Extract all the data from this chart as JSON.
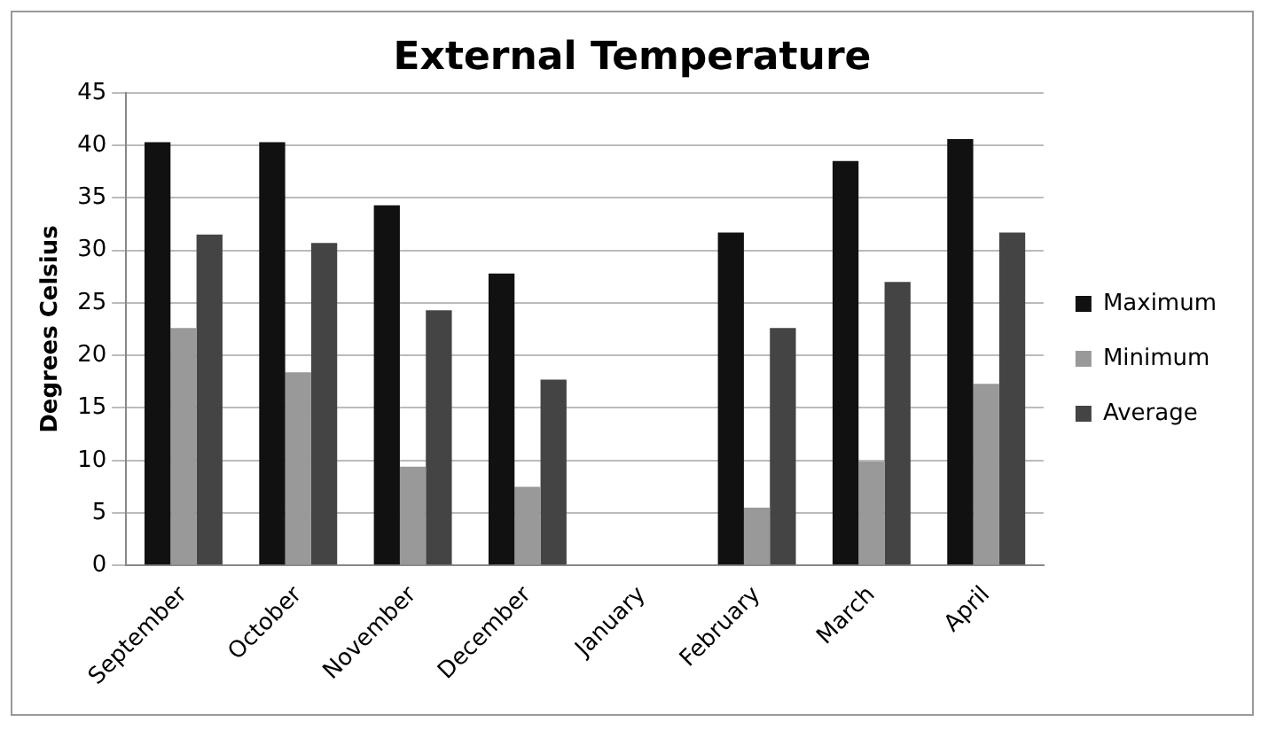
{
  "chart_data": {
    "type": "bar",
    "title": "External Temperature",
    "ylabel": "Degrees Celsius",
    "categories": [
      "September",
      "October",
      "November",
      "December",
      "January",
      "February",
      "March",
      "April"
    ],
    "series": [
      {
        "name": "Maximum",
        "color": "#111111",
        "values": [
          40.3,
          40.3,
          34.3,
          27.8,
          null,
          31.7,
          38.5,
          40.6
        ]
      },
      {
        "name": "Minimum",
        "color": "#999999",
        "values": [
          22.6,
          18.4,
          9.4,
          7.5,
          null,
          5.5,
          9.9,
          17.3
        ]
      },
      {
        "name": "Average",
        "color": "#444444",
        "values": [
          31.5,
          30.7,
          24.3,
          17.7,
          null,
          22.6,
          27.0,
          31.7
        ]
      }
    ],
    "ylim": [
      0,
      45
    ],
    "yticks": [
      0,
      5,
      10,
      15,
      20,
      25,
      30,
      35,
      40,
      45
    ],
    "grid": "y",
    "legend": "right"
  }
}
